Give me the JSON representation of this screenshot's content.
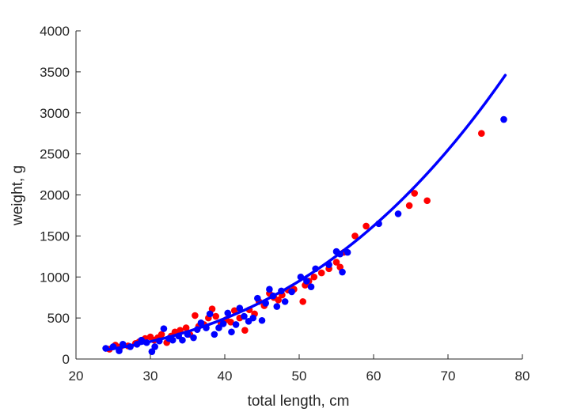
{
  "chart_data": {
    "type": "scatter",
    "xlabel": "total length, cm",
    "ylabel": "weight, g",
    "xlim": [
      20,
      80
    ],
    "ylim": [
      0,
      4000
    ],
    "xticks": [
      "20",
      "30",
      "40",
      "50",
      "60",
      "70",
      "80"
    ],
    "yticks": [
      "0",
      "500",
      "1000",
      "1500",
      "2000",
      "2500",
      "3000",
      "3500",
      "4000"
    ],
    "grid": false,
    "legend": "none",
    "colors": {
      "series_a": "#ff0000",
      "series_b": "#0000ff",
      "fit": "#0000ff",
      "axis": "#262626"
    },
    "series": [
      {
        "type": "scatter",
        "color": "#ff0000",
        "points": [
          [
            24.5,
            120
          ],
          [
            25.3,
            170
          ],
          [
            26.0,
            150
          ],
          [
            27.0,
            160
          ],
          [
            28.0,
            190
          ],
          [
            28.5,
            210
          ],
          [
            29.3,
            250
          ],
          [
            30.0,
            270
          ],
          [
            30.5,
            230
          ],
          [
            31.0,
            260
          ],
          [
            31.5,
            300
          ],
          [
            32.2,
            200
          ],
          [
            32.8,
            280
          ],
          [
            33.3,
            330
          ],
          [
            34.0,
            350
          ],
          [
            34.8,
            380
          ],
          [
            35.3,
            300
          ],
          [
            36.0,
            530
          ],
          [
            36.5,
            400
          ],
          [
            37.2,
            420
          ],
          [
            37.8,
            500
          ],
          [
            38.3,
            610
          ],
          [
            38.8,
            520
          ],
          [
            39.5,
            430
          ],
          [
            40.2,
            480
          ],
          [
            40.8,
            450
          ],
          [
            41.3,
            590
          ],
          [
            42.0,
            500
          ],
          [
            42.7,
            350
          ],
          [
            43.3,
            600
          ],
          [
            44.0,
            550
          ],
          [
            44.6,
            700
          ],
          [
            45.3,
            650
          ],
          [
            46.0,
            800
          ],
          [
            46.6,
            750
          ],
          [
            47.2,
            720
          ],
          [
            47.7,
            780
          ],
          [
            48.5,
            840
          ],
          [
            49.3,
            850
          ],
          [
            50.5,
            700
          ],
          [
            50.8,
            900
          ],
          [
            51.3,
            950
          ],
          [
            52.0,
            1000
          ],
          [
            53.0,
            1050
          ],
          [
            54.0,
            1100
          ],
          [
            55.0,
            1180
          ],
          [
            55.5,
            1120
          ],
          [
            56.0,
            1300
          ],
          [
            57.5,
            1500
          ],
          [
            59.0,
            1620
          ],
          [
            64.8,
            1870
          ],
          [
            65.5,
            2020
          ],
          [
            67.2,
            1930
          ],
          [
            74.5,
            2750
          ]
        ]
      },
      {
        "type": "scatter",
        "color": "#0000ff",
        "points": [
          [
            24.0,
            130
          ],
          [
            25.0,
            150
          ],
          [
            25.8,
            100
          ],
          [
            26.3,
            180
          ],
          [
            27.3,
            150
          ],
          [
            28.2,
            180
          ],
          [
            28.8,
            230
          ],
          [
            29.5,
            200
          ],
          [
            30.2,
            90
          ],
          [
            30.6,
            150
          ],
          [
            31.2,
            220
          ],
          [
            31.8,
            370
          ],
          [
            32.5,
            250
          ],
          [
            33.0,
            230
          ],
          [
            33.8,
            280
          ],
          [
            34.3,
            230
          ],
          [
            35.0,
            300
          ],
          [
            35.8,
            260
          ],
          [
            36.3,
            360
          ],
          [
            36.8,
            440
          ],
          [
            37.5,
            380
          ],
          [
            38.0,
            550
          ],
          [
            38.6,
            300
          ],
          [
            39.2,
            380
          ],
          [
            39.8,
            430
          ],
          [
            40.4,
            560
          ],
          [
            40.9,
            330
          ],
          [
            41.5,
            420
          ],
          [
            42.0,
            620
          ],
          [
            42.6,
            520
          ],
          [
            43.2,
            460
          ],
          [
            43.8,
            500
          ],
          [
            44.4,
            740
          ],
          [
            45.0,
            470
          ],
          [
            45.5,
            680
          ],
          [
            46.0,
            850
          ],
          [
            46.5,
            770
          ],
          [
            47.0,
            640
          ],
          [
            47.6,
            830
          ],
          [
            48.1,
            700
          ],
          [
            49.0,
            820
          ],
          [
            50.2,
            1000
          ],
          [
            51.0,
            950
          ],
          [
            51.6,
            880
          ],
          [
            52.2,
            1100
          ],
          [
            54.0,
            1150
          ],
          [
            55.0,
            1310
          ],
          [
            55.5,
            1280
          ],
          [
            55.8,
            1060
          ],
          [
            56.5,
            1300
          ],
          [
            60.7,
            1650
          ],
          [
            63.3,
            1770
          ],
          [
            77.5,
            2920
          ]
        ]
      }
    ],
    "fit": {
      "type": "line",
      "color": "#0000ff",
      "model": "power",
      "coefficient": 0.01,
      "exponent": 2.93,
      "x_range": [
        24,
        77.7
      ]
    }
  }
}
